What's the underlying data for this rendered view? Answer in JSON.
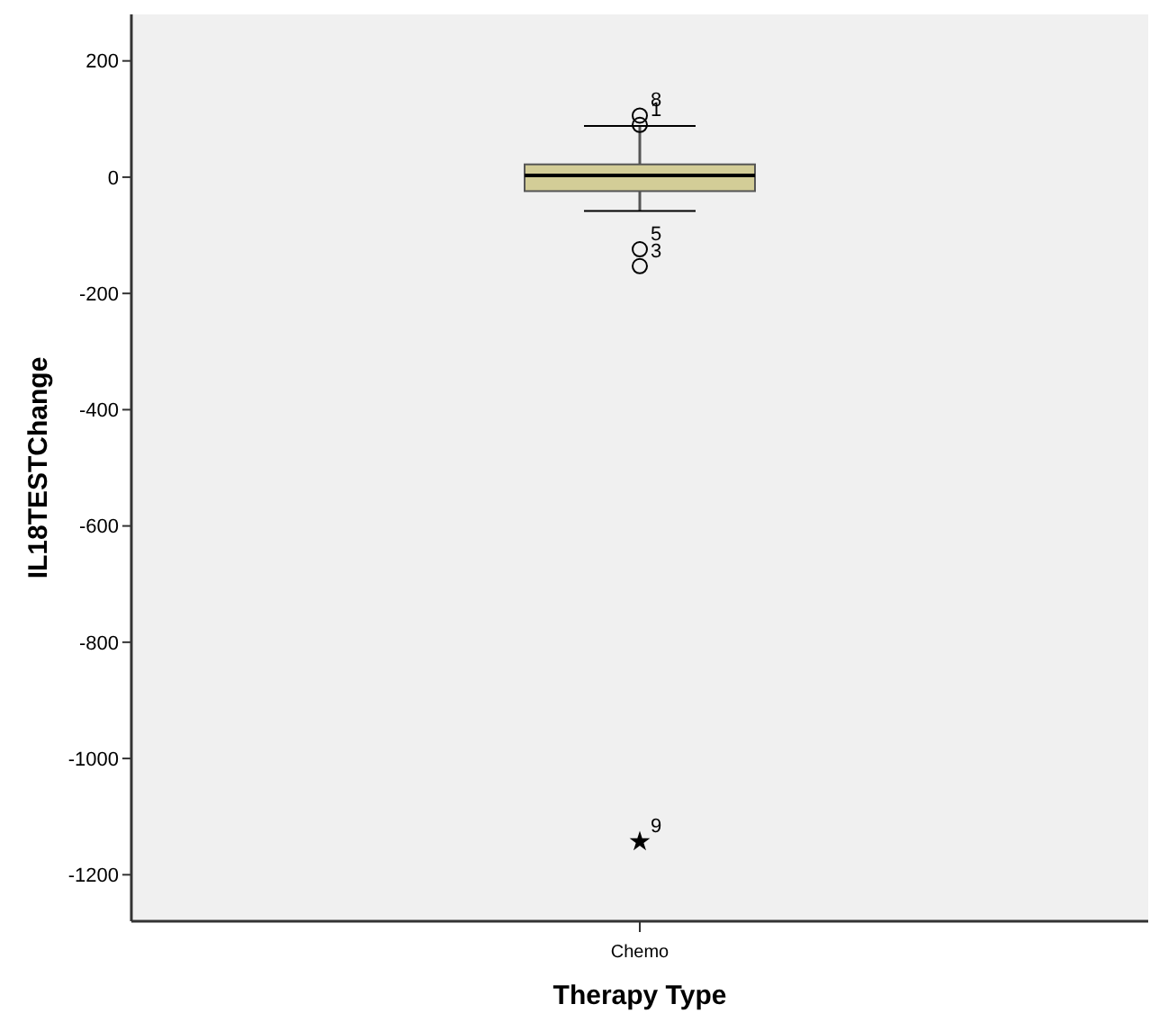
{
  "chart_data": {
    "type": "box",
    "xlabel": "Therapy Type",
    "ylabel": "IL18TESTChange",
    "categories": [
      "Chemo"
    ],
    "color": "#d3cd97",
    "boxes": [
      {
        "low": -58,
        "q1": -24,
        "median": 3,
        "q3": 22,
        "high": 88,
        "outliers": [
          106,
          90,
          -124,
          -153
        ]
      }
    ],
    "series": [
      {
        "type": "scatter",
        "marker": "star",
        "color": "#000000",
        "x": [
          "Chemo"
        ],
        "values": [
          -1143
        ]
      }
    ],
    "ylim": [
      -1280,
      280
    ],
    "yticks": [
      200,
      0,
      -200,
      -400,
      -600,
      -800,
      -1000,
      -1200
    ],
    "annotations": [
      "8",
      "1",
      "5",
      "3",
      "9"
    ]
  }
}
